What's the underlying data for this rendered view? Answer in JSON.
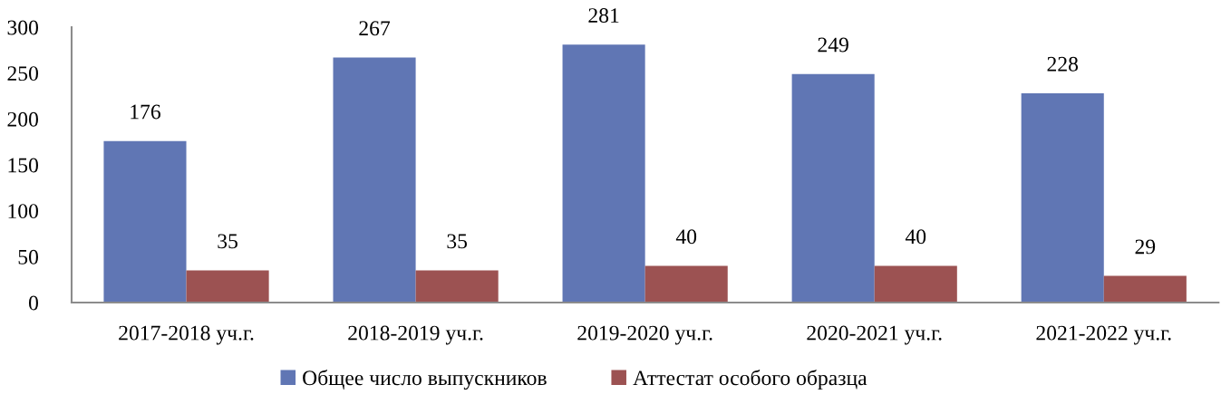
{
  "chart_data": {
    "type": "bar",
    "categories": [
      "2017-2018 уч.г.",
      "2018-2019 уч.г.",
      "2019-2020 уч.г.",
      "2020-2021 уч.г.",
      "2021-2022 уч.г."
    ],
    "series": [
      {
        "name": "Общее число выпускников",
        "color": "#6076b4",
        "values": [
          176,
          267,
          281,
          249,
          228
        ]
      },
      {
        "name": "Аттестат особого образца",
        "color": "#9c5252",
        "values": [
          35,
          35,
          40,
          40,
          29
        ]
      }
    ],
    "ylim": [
      0,
      300
    ],
    "yticks": [
      0,
      50,
      100,
      150,
      200,
      250,
      300
    ],
    "data_labels": true,
    "grid": false,
    "legend": "bottom"
  }
}
